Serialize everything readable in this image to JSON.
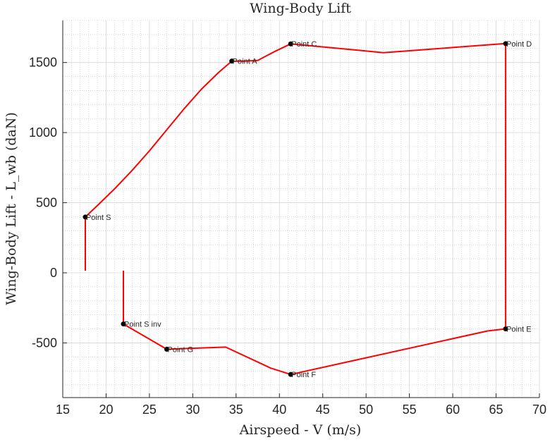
{
  "chart_data": {
    "type": "line",
    "title": "Wing-Body Lift",
    "xlabel": "Airspeed - V (m/s)",
    "ylabel": "Wing-Body Lift - L_wb (daN)",
    "xlim": [
      15,
      70
    ],
    "ylim": [
      -890,
      1800
    ],
    "xticks": [
      15,
      20,
      25,
      30,
      35,
      40,
      45,
      50,
      55,
      60,
      65,
      70
    ],
    "yticks": [
      -500,
      0,
      500,
      1000,
      1500
    ],
    "grid": true,
    "minor_grid": true,
    "series_color": "#ff0000",
    "series": [
      {
        "points": [
          [
            17.6,
            15
          ],
          [
            17.6,
            398
          ],
          [
            19.0,
            480
          ],
          [
            21.0,
            600
          ],
          [
            23.0,
            730
          ],
          [
            25.0,
            870
          ],
          [
            27.0,
            1020
          ],
          [
            29.0,
            1170
          ],
          [
            31.0,
            1310
          ],
          [
            33.0,
            1430
          ],
          [
            34.5,
            1510
          ],
          [
            36.0,
            1510
          ],
          [
            37.5,
            1515
          ],
          [
            39.5,
            1580
          ],
          [
            41.3,
            1633
          ],
          [
            52.0,
            1570
          ],
          [
            66.1,
            1635
          ],
          [
            66.1,
            -400
          ],
          [
            64.0,
            -415
          ],
          [
            41.3,
            -725
          ],
          [
            39.0,
            -680
          ],
          [
            33.8,
            -530
          ],
          [
            27.0,
            -545
          ],
          [
            22.0,
            -365
          ],
          [
            22.0,
            15
          ]
        ]
      }
    ],
    "markers": [
      {
        "label": "Point S",
        "x": 17.6,
        "y": 398
      },
      {
        "label": "Point A",
        "x": 34.5,
        "y": 1510
      },
      {
        "label": "Point C",
        "x": 41.3,
        "y": 1633
      },
      {
        "label": "Point D",
        "x": 66.1,
        "y": 1635
      },
      {
        "label": "Point E",
        "x": 66.1,
        "y": -400
      },
      {
        "label": "Point F",
        "x": 41.3,
        "y": -725
      },
      {
        "label": "Point G",
        "x": 27.0,
        "y": -545
      },
      {
        "label": "Point S inv",
        "x": 22.0,
        "y": -365
      }
    ]
  }
}
